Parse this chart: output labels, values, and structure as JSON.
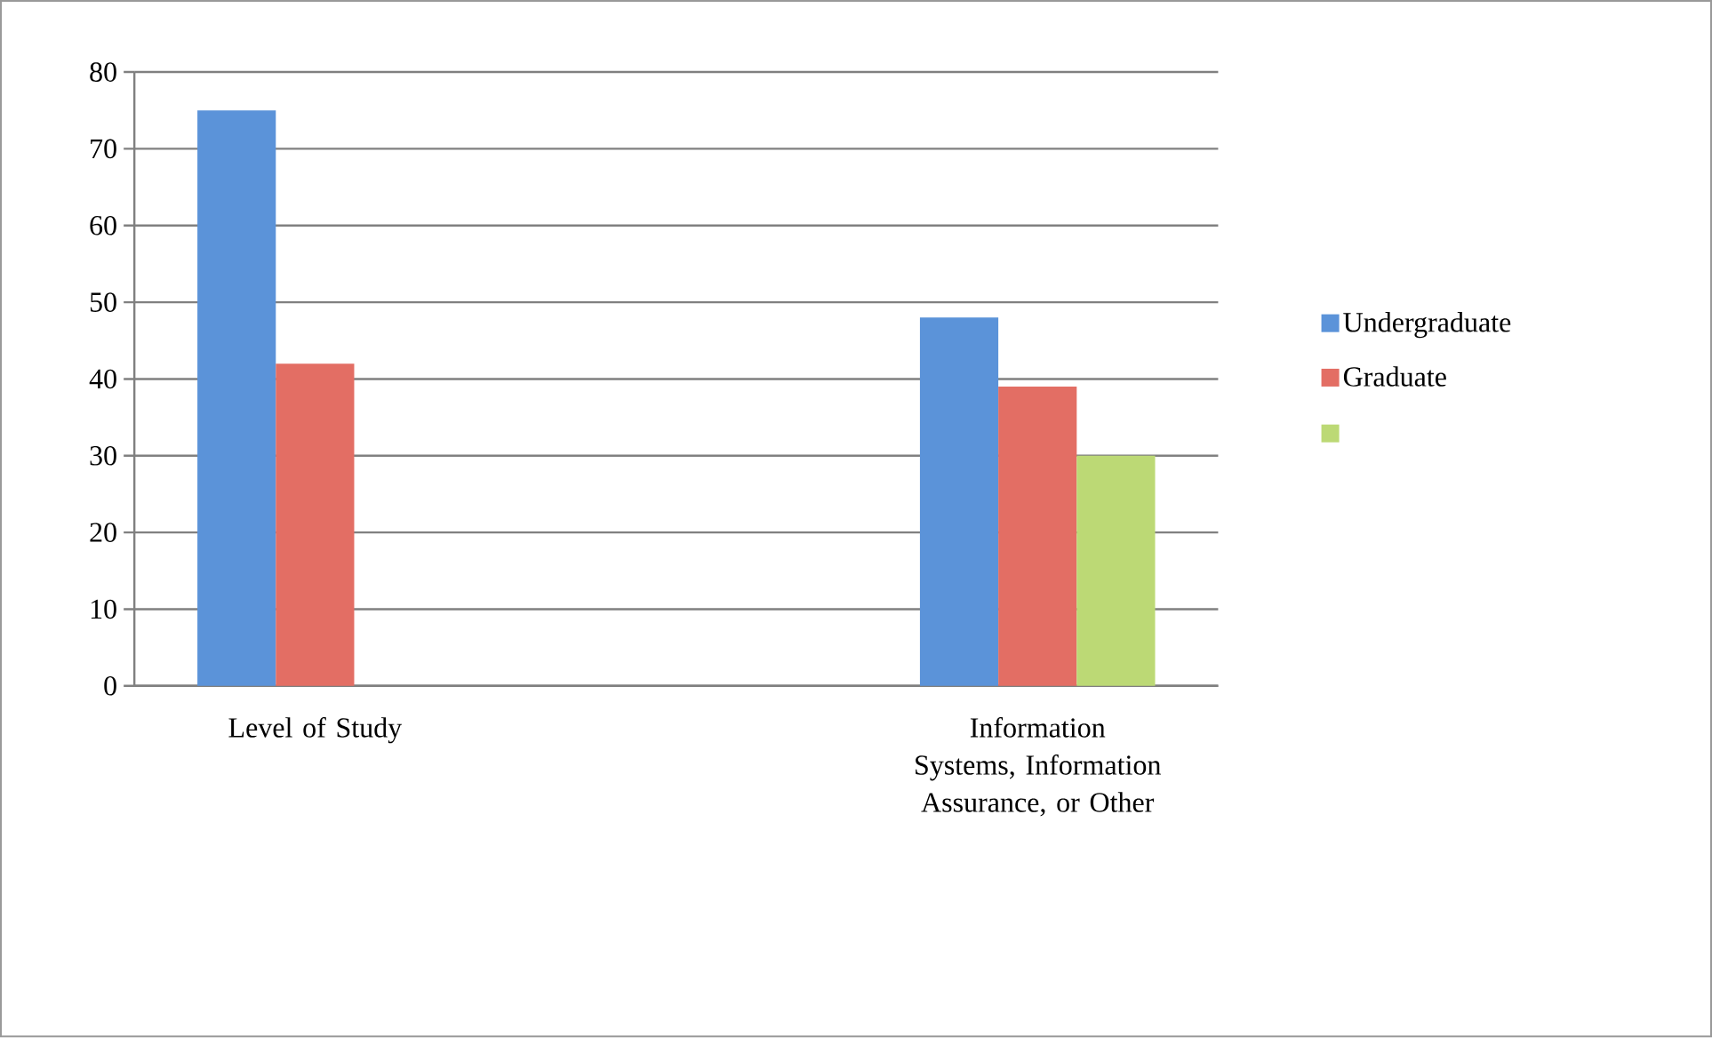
{
  "chart_data": {
    "type": "bar",
    "categories": [
      "Level of Study",
      null,
      "Information Systems, Information Assurance, or Other"
    ],
    "series": [
      {
        "name": "Undergraduate",
        "color": "#5b93d9",
        "values": [
          75,
          null,
          48
        ]
      },
      {
        "name": "Graduate",
        "color": "#e36e64",
        "values": [
          42,
          null,
          39
        ]
      },
      {
        "color": "#bcd975",
        "values": [
          null,
          null,
          30
        ]
      }
    ],
    "ylim": [
      0,
      80
    ],
    "yticks": [
      0,
      10,
      20,
      30,
      40,
      50,
      60,
      70,
      80
    ],
    "grid": "y",
    "legend": "right"
  }
}
